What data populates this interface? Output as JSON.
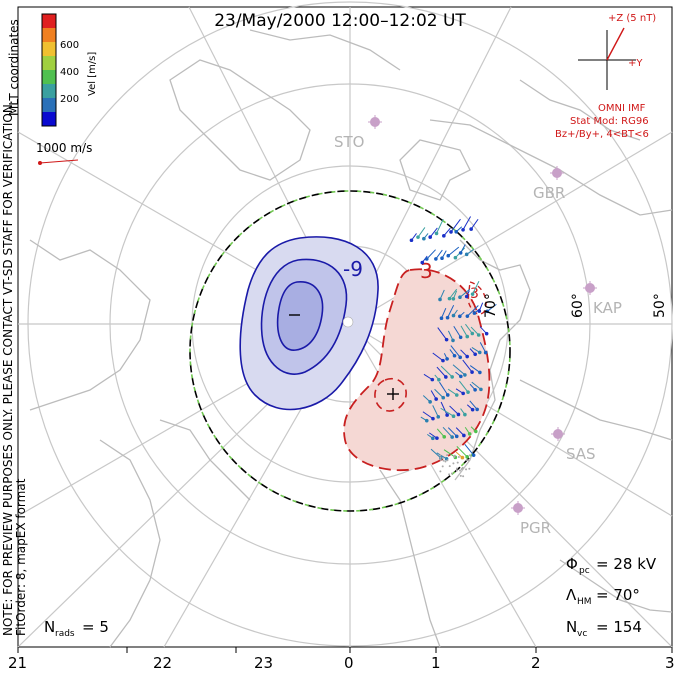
{
  "title": "23/May/2000 12:00–12:02 UT",
  "coordinates_label": "MLT coordinates",
  "colorbar": {
    "label": "Vel [m/s]",
    "ticks": [
      "600",
      "400",
      "200"
    ],
    "colors": [
      "#0a0ad0",
      "#2a70b8",
      "#3aa0a0",
      "#50c050",
      "#a0d040",
      "#f0c030",
      "#f08020",
      "#e02020"
    ]
  },
  "vector_scale": {
    "label": "1000 m/s"
  },
  "imf": {
    "z_label": "+Z (5 nT)",
    "y_label": "+Y",
    "source": "OMNI IMF",
    "model": "Stat Mod: RG96",
    "condition": "Bz+/By+, 4<BT<6"
  },
  "notes": {
    "line1": "NOTE: FOR PREVIEW PURPOSES ONLY. PLEASE CONTACT VT-SD STAFF FOR VERIFICATION.",
    "line2": "FitOrder: 8, mapEX format"
  },
  "latitude_labels": [
    "70°",
    "60°",
    "50°"
  ],
  "stations": [
    "STO",
    "GBR",
    "KAP",
    "SAS",
    "PGR"
  ],
  "contours": {
    "negative": "-9",
    "positive": "3",
    "positive_small": "3"
  },
  "stats": {
    "phi_symbol": "Φ",
    "phi_sub": "pc",
    "phi_value": "= 28 kV",
    "lambda_symbol": "Λ",
    "lambda_sub": "HM",
    "lambda_value": "= 70°",
    "nvc_symbol": "N",
    "nvc_sub": "vc",
    "nvc_value": "= 154",
    "nrads_symbol": "N",
    "nrads_sub": "rads",
    "nrads_value": "= 5"
  },
  "mlt_ticks": [
    "21",
    "22",
    "23",
    "0",
    "1",
    "2",
    "3"
  ],
  "colors": {
    "negative_line": "#1a1aa8",
    "negative_fill": "#d8daf0",
    "positive_line": "#c82020",
    "positive_fill": "#f5d8d4",
    "grid": "#c8c8c8",
    "coast": "#bcbcbc"
  }
}
